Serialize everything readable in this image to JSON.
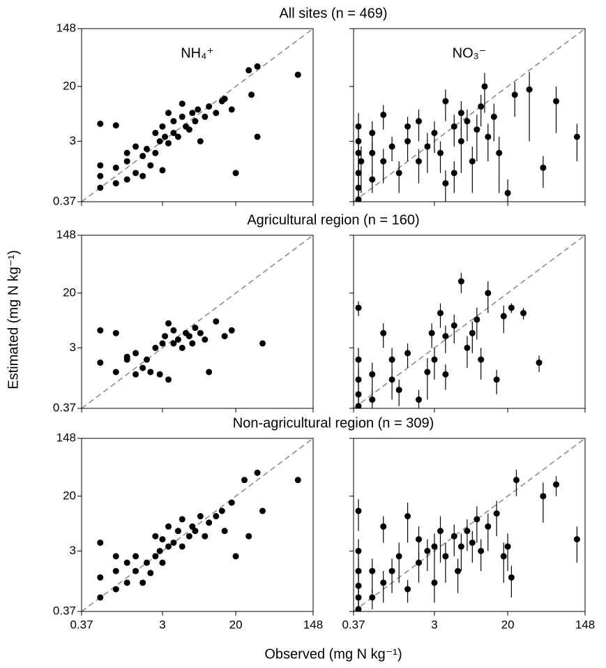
{
  "xlabel": "Observed (mg N kg⁻¹)",
  "ylabel": "Estimated (mg N kg⁻¹)",
  "chart_data": [
    {
      "type": "scatter",
      "title": "All sites (n = 469)",
      "annotation": "NH₄⁺",
      "color": "#000000",
      "log_scale": true,
      "xlim": [
        0.37,
        148
      ],
      "ylim": [
        0.37,
        148
      ],
      "xticks": [
        0.37,
        3,
        20,
        148
      ],
      "yticks": [
        0.37,
        3,
        20,
        148
      ],
      "show_xtick_labels": false,
      "show_ytick_labels": true,
      "x": [
        0.6,
        0.6,
        0.6,
        0.6,
        0.9,
        0.9,
        0.9,
        1.2,
        1.2,
        1.2,
        1.5,
        1.5,
        1.8,
        1.8,
        2.0,
        2.2,
        2.5,
        2.5,
        2.8,
        3.0,
        3.0,
        3.2,
        3.5,
        3.5,
        4.0,
        4.0,
        4.5,
        5.0,
        5.0,
        5.5,
        6.0,
        6.5,
        7.0,
        7.5,
        8.0,
        9.0,
        10,
        12,
        14,
        15,
        18,
        20,
        28,
        30,
        35,
        35,
        100
      ],
      "values": [
        0.6,
        0.9,
        1.3,
        5.5,
        0.7,
        1.2,
        5.2,
        0.8,
        1.5,
        2.0,
        1.0,
        2.5,
        0.9,
        1.8,
        2.3,
        1.3,
        2.0,
        4.0,
        3.0,
        1.1,
        5.0,
        3.5,
        2.8,
        8.0,
        4.0,
        6.0,
        3.5,
        7.0,
        11,
        5.0,
        4.5,
        8.0,
        6.0,
        9.0,
        3.0,
        7.0,
        10,
        8.0,
        12,
        13,
        9.0,
        1.0,
        35,
        15,
        40,
        3.5,
        30
      ]
    },
    {
      "type": "scatter",
      "annotation": "NO₃⁻",
      "color": "#000000",
      "log_scale": true,
      "xlim": [
        0.37,
        148
      ],
      "ylim": [
        0.37,
        148
      ],
      "xticks": [
        0.37,
        3,
        20,
        148
      ],
      "yticks": [
        0.37,
        3,
        20,
        148
      ],
      "show_xtick_labels": false,
      "show_ytick_labels": false,
      "x": [
        0.42,
        0.42,
        0.42,
        0.42,
        0.42,
        0.42,
        0.45,
        0.6,
        0.6,
        0.6,
        0.8,
        0.8,
        1.0,
        1.2,
        1.5,
        1.5,
        2.0,
        2.0,
        2.5,
        3.0,
        3.5,
        4.0,
        4.0,
        5.0,
        5.0,
        6.0,
        6.0,
        7.0,
        8.0,
        9.0,
        10,
        11,
        12,
        14,
        16,
        20,
        24,
        35,
        50,
        70,
        120
      ],
      "values": [
        0.4,
        0.6,
        1.0,
        2.0,
        3.0,
        5.0,
        1.5,
        0.8,
        2.0,
        4.0,
        1.5,
        7.5,
        2.5,
        1.0,
        3.0,
        5.0,
        1.5,
        6.0,
        2.5,
        4.0,
        2.0,
        12,
        0.7,
        5.0,
        1.0,
        8.0,
        3.0,
        6.0,
        1.5,
        4.5,
        10,
        20,
        3.5,
        7.0,
        2.0,
        0.5,
        15,
        18,
        1.2,
        12,
        3.5
      ],
      "errors": [
        0.3,
        0.4,
        0.6,
        1.5,
        2.0,
        3.0,
        1.0,
        0.3,
        1.0,
        2.0,
        0.8,
        3.0,
        1.0,
        0.5,
        1.5,
        2.0,
        0.8,
        3.0,
        1.5,
        2.0,
        1.0,
        6.0,
        0.4,
        2.5,
        0.5,
        4.0,
        2.0,
        3.0,
        1.0,
        3.0,
        5.0,
        12,
        2.0,
        4.0,
        1.5,
        0.3,
        8,
        15,
        0.6,
        8.0,
        2.0
      ]
    },
    {
      "type": "scatter",
      "title": "Agricultural region (n = 160)",
      "color": "#000000",
      "log_scale": true,
      "xlim": [
        0.37,
        148
      ],
      "ylim": [
        0.37,
        148
      ],
      "xticks": [
        0.37,
        3,
        20,
        148
      ],
      "yticks": [
        0.37,
        3,
        20,
        148
      ],
      "show_xtick_labels": false,
      "show_ytick_labels": true,
      "x": [
        0.6,
        0.6,
        0.9,
        0.9,
        1.2,
        1.2,
        1.5,
        1.5,
        1.8,
        2.0,
        2.2,
        2.5,
        2.8,
        3.0,
        3.2,
        3.5,
        3.5,
        4.0,
        4.0,
        4.5,
        5.0,
        5.5,
        6.0,
        6.5,
        7.0,
        8.0,
        9.0,
        10,
        12,
        15,
        18,
        40
      ],
      "values": [
        1.8,
        5.5,
        1.3,
        5.0,
        2.0,
        2.2,
        1.2,
        2.5,
        1.5,
        2.0,
        1.3,
        3.0,
        1.2,
        3.5,
        4.5,
        1.0,
        7.0,
        3.5,
        5.5,
        4.0,
        3.0,
        5.0,
        4.5,
        3.5,
        6.0,
        5.0,
        4.0,
        1.3,
        7.5,
        4.5,
        5.5,
        3.5
      ]
    },
    {
      "type": "scatter",
      "color": "#000000",
      "log_scale": true,
      "xlim": [
        0.37,
        148
      ],
      "ylim": [
        0.37,
        148
      ],
      "xticks": [
        0.37,
        3,
        20,
        148
      ],
      "yticks": [
        0.37,
        3,
        20,
        148
      ],
      "show_xtick_labels": false,
      "show_ytick_labels": false,
      "x": [
        0.42,
        0.42,
        0.42,
        0.42,
        0.42,
        0.6,
        0.6,
        0.8,
        1.0,
        1.0,
        1.2,
        1.5,
        2.0,
        2.5,
        2.8,
        3.0,
        3.5,
        4.0,
        4.0,
        5.0,
        6.0,
        7.0,
        8.0,
        9.0,
        10,
        12,
        15,
        18,
        22,
        30,
        45
      ],
      "values": [
        0.4,
        0.6,
        1.0,
        2.0,
        12,
        0.5,
        1.2,
        5.0,
        1.0,
        2.0,
        0.7,
        2.5,
        0.5,
        1.3,
        5.0,
        2.0,
        10,
        4.5,
        1.2,
        6.5,
        30,
        3.0,
        5.0,
        8.0,
        2.0,
        20,
        1.0,
        9.0,
        12,
        10,
        1.8
      ],
      "errors": [
        0.2,
        0.3,
        0.5,
        1.0,
        3.0,
        0.2,
        0.6,
        2.0,
        0.5,
        1.0,
        0.3,
        1.0,
        0.2,
        0.8,
        2.0,
        1.0,
        4.0,
        2.0,
        0.5,
        3.0,
        10,
        1.5,
        2.5,
        4.0,
        1.0,
        10,
        0.4,
        4.0,
        2.0,
        2.0,
        0.5
      ]
    },
    {
      "type": "scatter",
      "title": "Non-agricultural region (n = 309)",
      "color": "#000000",
      "log_scale": true,
      "xlim": [
        0.37,
        148
      ],
      "ylim": [
        0.37,
        148
      ],
      "xticks": [
        0.37,
        3,
        20,
        148
      ],
      "yticks": [
        0.37,
        3,
        20,
        148
      ],
      "show_xtick_labels": true,
      "show_ytick_labels": true,
      "x": [
        0.6,
        0.6,
        0.6,
        0.9,
        0.9,
        0.9,
        1.2,
        1.2,
        1.5,
        1.5,
        1.8,
        2.0,
        2.2,
        2.5,
        2.5,
        2.8,
        3.0,
        3.0,
        3.5,
        3.5,
        4.0,
        4.5,
        5.0,
        5.0,
        6.0,
        6.5,
        7.0,
        8.0,
        9.0,
        10,
        12,
        14,
        15,
        18,
        20,
        25,
        28,
        35,
        40,
        100
      ],
      "values": [
        0.6,
        1.2,
        4.0,
        0.8,
        1.5,
        2.5,
        1.0,
        2.0,
        1.5,
        2.5,
        1.0,
        2.0,
        1.4,
        2.5,
        5.0,
        3.0,
        2.0,
        4.5,
        3.5,
        7.0,
        4.0,
        6.0,
        3.5,
        9.0,
        5.0,
        7.0,
        6.0,
        10,
        5.0,
        8.0,
        10,
        12,
        6.0,
        16,
        2.5,
        35,
        5.0,
        45,
        12,
        35
      ]
    },
    {
      "type": "scatter",
      "color": "#000000",
      "log_scale": true,
      "xlim": [
        0.37,
        148
      ],
      "ylim": [
        0.37,
        148
      ],
      "xticks": [
        0.37,
        3,
        20,
        148
      ],
      "yticks": [
        0.37,
        3,
        20,
        148
      ],
      "show_xtick_labels": true,
      "show_ytick_labels": false,
      "x": [
        0.42,
        0.42,
        0.42,
        0.42,
        0.42,
        0.42,
        0.6,
        0.6,
        0.8,
        0.8,
        1.0,
        1.2,
        1.5,
        1.5,
        2.0,
        2.0,
        2.5,
        3.0,
        3.0,
        3.5,
        4.0,
        5.0,
        5.5,
        6.0,
        7.0,
        8.0,
        9.0,
        10,
        12,
        15,
        18,
        20,
        22,
        25,
        50,
        70,
        120
      ],
      "values": [
        0.4,
        0.6,
        0.9,
        1.5,
        3.0,
        12,
        0.6,
        1.5,
        1.0,
        7.0,
        1.5,
        2.5,
        0.8,
        10,
        2.0,
        4.5,
        3.0,
        1.0,
        3.5,
        6.0,
        2.5,
        5.0,
        1.5,
        3.5,
        6.0,
        4.0,
        9.0,
        3.0,
        7.0,
        11,
        2.5,
        3.5,
        1.2,
        35,
        20,
        30,
        4.5
      ],
      "errors": [
        0.2,
        0.3,
        0.5,
        0.8,
        1.5,
        6.0,
        0.2,
        0.8,
        0.5,
        3.0,
        0.8,
        1.5,
        0.3,
        6.0,
        1.0,
        2.5,
        1.5,
        0.5,
        2.0,
        4.0,
        1.5,
        2.5,
        0.8,
        2.0,
        3.0,
        2.0,
        5.0,
        1.5,
        4.0,
        6.0,
        1.5,
        2.0,
        0.6,
        15,
        12,
        10,
        2.5
      ]
    }
  ]
}
